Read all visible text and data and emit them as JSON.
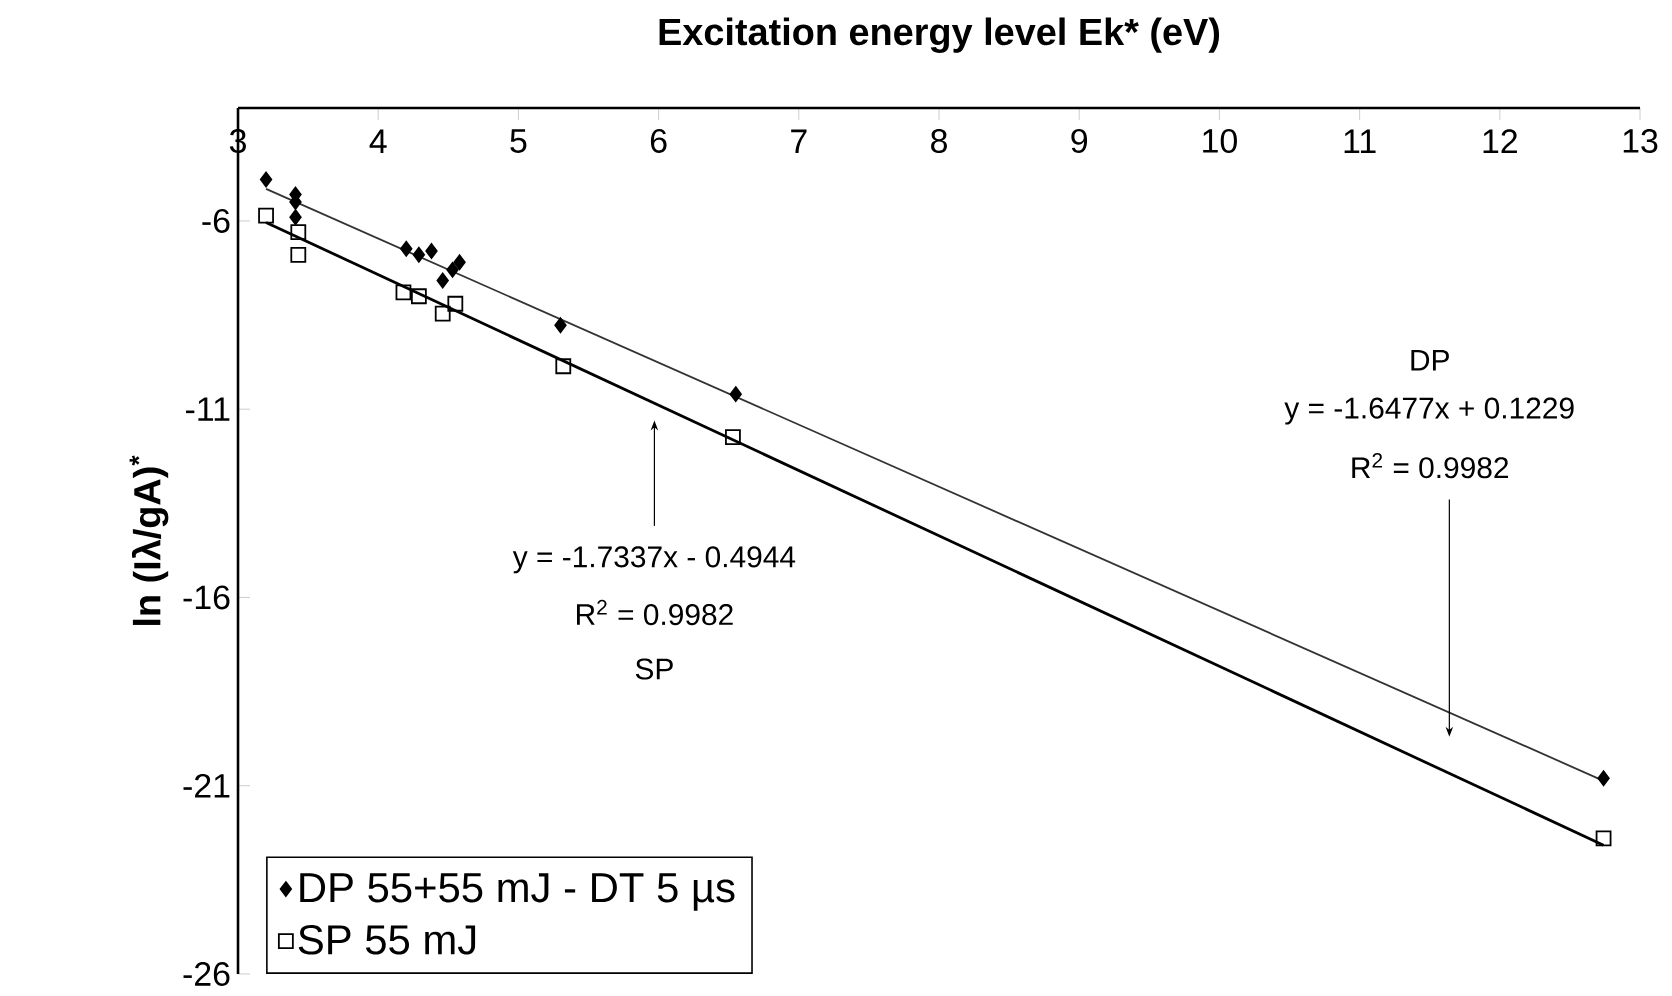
{
  "chart_data": {
    "type": "scatter",
    "xlabel": "Excitation energy level Ek* (eV)",
    "ylabel": "ln (Iλ/gA)$^{*}$",
    "xlim": [
      3,
      13
    ],
    "ylim": [
      -26,
      -3
    ],
    "xticks": [
      3,
      4,
      5,
      6,
      7,
      8,
      9,
      10,
      11,
      12,
      13
    ],
    "yticks": [
      -6,
      -11,
      -16,
      -21,
      -26
    ],
    "legend": "bottom left",
    "series": [
      {
        "name": "DP 55+55 mJ - DT 5 µs",
        "type": "scatter",
        "marker": "diamond",
        "color": "#000000",
        "x": [
          3.2,
          3.41,
          3.41,
          3.41,
          4.2,
          4.29,
          4.38,
          4.46,
          4.53,
          4.58,
          5.3,
          6.55,
          12.74
        ],
        "values": [
          -4.9,
          -5.3,
          -5.5,
          -5.9,
          -6.74,
          -6.9,
          -6.8,
          -7.58,
          -7.3,
          -7.1,
          -8.77,
          -10.6,
          -20.8
        ]
      },
      {
        "name": "SP 55 mJ",
        "type": "scatter",
        "marker": "square",
        "color": "#000000",
        "x": [
          3.2,
          3.43,
          3.43,
          4.18,
          4.29,
          4.46,
          4.55,
          5.32,
          6.53,
          12.74
        ],
        "values": [
          -5.86,
          -6.3,
          -6.9,
          -7.9,
          -8.0,
          -8.46,
          -8.2,
          -9.86,
          -11.74,
          -22.4
        ]
      },
      {
        "type": "line",
        "color": "#333333",
        "x": [
          3.2,
          12.74
        ],
        "values": [
          -5.15,
          -20.87
        ]
      },
      {
        "type": "line",
        "color": "#000000",
        "x": [
          3.2,
          12.74
        ],
        "values": [
          -6.04,
          -22.58
        ]
      }
    ],
    "annotations": [
      "y = -1.7337x - 0.4944",
      "R$^{2}$ = 0.9982",
      "SP",
      "DP",
      "y = -1.6477x + 0.1229",
      "R$^{2}$ = 0.9982"
    ]
  }
}
